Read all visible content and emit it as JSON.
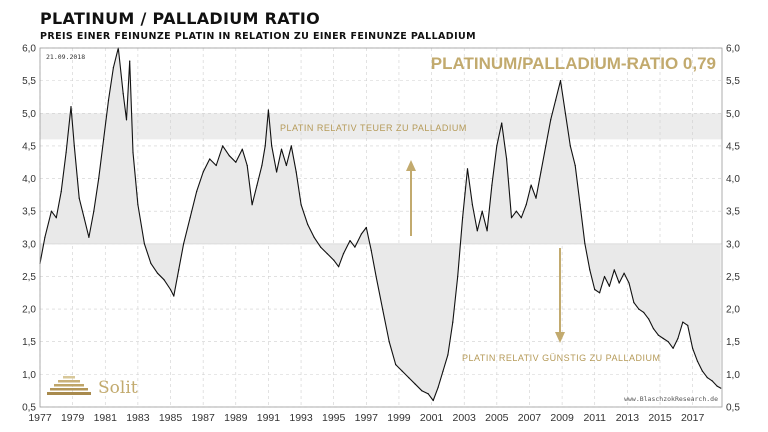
{
  "header": {
    "title": "PLATINUM / PALLADIUM RATIO",
    "subtitle": "PREIS EINER FEINUNZE PLATIN IN RELATION ZU EINER FEINUNZE PALLADIUM"
  },
  "chart_data": {
    "type": "line",
    "title": "PLATINUM / PALLADIUM RATIO",
    "subtitle": "PREIS EINER FEINUNZE PLATIN IN RELATION ZU EINER FEINUNZE PALLADIUM",
    "date_stamp": "21.09.2018",
    "headline": "PLATINUM/PALLADIUM-RATIO 0,79",
    "xlim": [
      1977,
      2018.8
    ],
    "ylim": [
      0.5,
      6.0
    ],
    "x_ticks": [
      "1977",
      "1979",
      "1981",
      "1983",
      "1985",
      "1987",
      "1989",
      "1991",
      "1993",
      "1995",
      "1997",
      "1999",
      "2001",
      "2003",
      "2005",
      "2007",
      "2009",
      "2011",
      "2013",
      "2015",
      "2017"
    ],
    "y_ticks": [
      "0,5",
      "1,0",
      "1,5",
      "2,0",
      "2,5",
      "3,0",
      "3,5",
      "4,0",
      "4,5",
      "5,0",
      "5,5",
      "6,0"
    ],
    "grid": true,
    "bands": [
      {
        "name": "teuer",
        "y_range": [
          4.6,
          5.0
        ],
        "color": "#ececec"
      },
      {
        "name": "reference_line",
        "y": 3.0
      }
    ],
    "annotations": [
      {
        "text": "PLATIN RELATIV TEUER ZU PALLADIUM",
        "x": 1993.5,
        "y": 4.82,
        "arrow": "up"
      },
      {
        "text": "PLATIN RELATIV GÜNSTIG ZU PALLADIUM",
        "x": 2009.5,
        "y": 1.27,
        "arrow": "down"
      }
    ],
    "series": [
      {
        "color": "#111111",
        "points": [
          [
            1977.0,
            2.7
          ],
          [
            1977.3,
            3.1
          ],
          [
            1977.7,
            3.5
          ],
          [
            1978.0,
            3.4
          ],
          [
            1978.3,
            3.8
          ],
          [
            1978.6,
            4.4
          ],
          [
            1978.9,
            5.1
          ],
          [
            1979.1,
            4.5
          ],
          [
            1979.4,
            3.7
          ],
          [
            1979.7,
            3.4
          ],
          [
            1980.0,
            3.1
          ],
          [
            1980.3,
            3.5
          ],
          [
            1980.6,
            4.0
          ],
          [
            1980.9,
            4.6
          ],
          [
            1981.2,
            5.2
          ],
          [
            1981.5,
            5.7
          ],
          [
            1981.8,
            6.0
          ],
          [
            1982.1,
            5.3
          ],
          [
            1982.3,
            4.9
          ],
          [
            1982.5,
            5.8
          ],
          [
            1982.7,
            4.4
          ],
          [
            1983.0,
            3.6
          ],
          [
            1983.4,
            3.0
          ],
          [
            1983.8,
            2.7
          ],
          [
            1984.2,
            2.55
          ],
          [
            1984.6,
            2.45
          ],
          [
            1985.0,
            2.3
          ],
          [
            1985.2,
            2.2
          ],
          [
            1985.5,
            2.6
          ],
          [
            1985.8,
            3.0
          ],
          [
            1986.2,
            3.4
          ],
          [
            1986.6,
            3.8
          ],
          [
            1987.0,
            4.1
          ],
          [
            1987.4,
            4.3
          ],
          [
            1987.8,
            4.2
          ],
          [
            1988.2,
            4.5
          ],
          [
            1988.6,
            4.35
          ],
          [
            1989.0,
            4.25
          ],
          [
            1989.4,
            4.45
          ],
          [
            1989.7,
            4.2
          ],
          [
            1990.0,
            3.6
          ],
          [
            1990.3,
            3.9
          ],
          [
            1990.6,
            4.2
          ],
          [
            1990.8,
            4.5
          ],
          [
            1991.0,
            5.05
          ],
          [
            1991.2,
            4.5
          ],
          [
            1991.5,
            4.1
          ],
          [
            1991.8,
            4.45
          ],
          [
            1992.1,
            4.2
          ],
          [
            1992.4,
            4.5
          ],
          [
            1992.7,
            4.1
          ],
          [
            1993.0,
            3.6
          ],
          [
            1993.4,
            3.3
          ],
          [
            1993.8,
            3.1
          ],
          [
            1994.2,
            2.95
          ],
          [
            1994.6,
            2.85
          ],
          [
            1995.0,
            2.75
          ],
          [
            1995.3,
            2.65
          ],
          [
            1995.6,
            2.85
          ],
          [
            1996.0,
            3.05
          ],
          [
            1996.3,
            2.95
          ],
          [
            1996.7,
            3.15
          ],
          [
            1997.0,
            3.25
          ],
          [
            1997.3,
            2.9
          ],
          [
            1997.6,
            2.5
          ],
          [
            1998.0,
            2.0
          ],
          [
            1998.4,
            1.5
          ],
          [
            1998.8,
            1.15
          ],
          [
            1999.2,
            1.05
          ],
          [
            1999.6,
            0.95
          ],
          [
            2000.0,
            0.85
          ],
          [
            2000.4,
            0.75
          ],
          [
            2000.8,
            0.7
          ],
          [
            2001.1,
            0.6
          ],
          [
            2001.4,
            0.8
          ],
          [
            2001.7,
            1.05
          ],
          [
            2002.0,
            1.3
          ],
          [
            2002.3,
            1.8
          ],
          [
            2002.6,
            2.5
          ],
          [
            2002.9,
            3.4
          ],
          [
            2003.2,
            4.15
          ],
          [
            2003.5,
            3.6
          ],
          [
            2003.8,
            3.2
          ],
          [
            2004.1,
            3.5
          ],
          [
            2004.4,
            3.2
          ],
          [
            2004.7,
            3.9
          ],
          [
            2005.0,
            4.5
          ],
          [
            2005.3,
            4.85
          ],
          [
            2005.6,
            4.3
          ],
          [
            2005.9,
            3.4
          ],
          [
            2006.2,
            3.5
          ],
          [
            2006.5,
            3.4
          ],
          [
            2006.8,
            3.6
          ],
          [
            2007.1,
            3.9
          ],
          [
            2007.4,
            3.7
          ],
          [
            2007.7,
            4.1
          ],
          [
            2008.0,
            4.5
          ],
          [
            2008.3,
            4.9
          ],
          [
            2008.6,
            5.2
          ],
          [
            2008.9,
            5.5
          ],
          [
            2009.2,
            5.0
          ],
          [
            2009.5,
            4.5
          ],
          [
            2009.8,
            4.2
          ],
          [
            2010.1,
            3.6
          ],
          [
            2010.4,
            3.0
          ],
          [
            2010.7,
            2.6
          ],
          [
            2011.0,
            2.3
          ],
          [
            2011.3,
            2.25
          ],
          [
            2011.6,
            2.5
          ],
          [
            2011.9,
            2.35
          ],
          [
            2012.2,
            2.6
          ],
          [
            2012.5,
            2.4
          ],
          [
            2012.8,
            2.55
          ],
          [
            2013.1,
            2.4
          ],
          [
            2013.4,
            2.1
          ],
          [
            2013.7,
            2.0
          ],
          [
            2014.0,
            1.95
          ],
          [
            2014.3,
            1.85
          ],
          [
            2014.6,
            1.7
          ],
          [
            2014.9,
            1.6
          ],
          [
            2015.2,
            1.55
          ],
          [
            2015.5,
            1.5
          ],
          [
            2015.8,
            1.4
          ],
          [
            2016.1,
            1.55
          ],
          [
            2016.4,
            1.8
          ],
          [
            2016.7,
            1.75
          ],
          [
            2017.0,
            1.4
          ],
          [
            2017.3,
            1.2
          ],
          [
            2017.6,
            1.05
          ],
          [
            2017.9,
            0.95
          ],
          [
            2018.2,
            0.9
          ],
          [
            2018.5,
            0.82
          ],
          [
            2018.72,
            0.79
          ]
        ]
      }
    ]
  },
  "logo": {
    "text": "Solit"
  },
  "source": {
    "text": "www.BlaschzokResearch.de"
  }
}
